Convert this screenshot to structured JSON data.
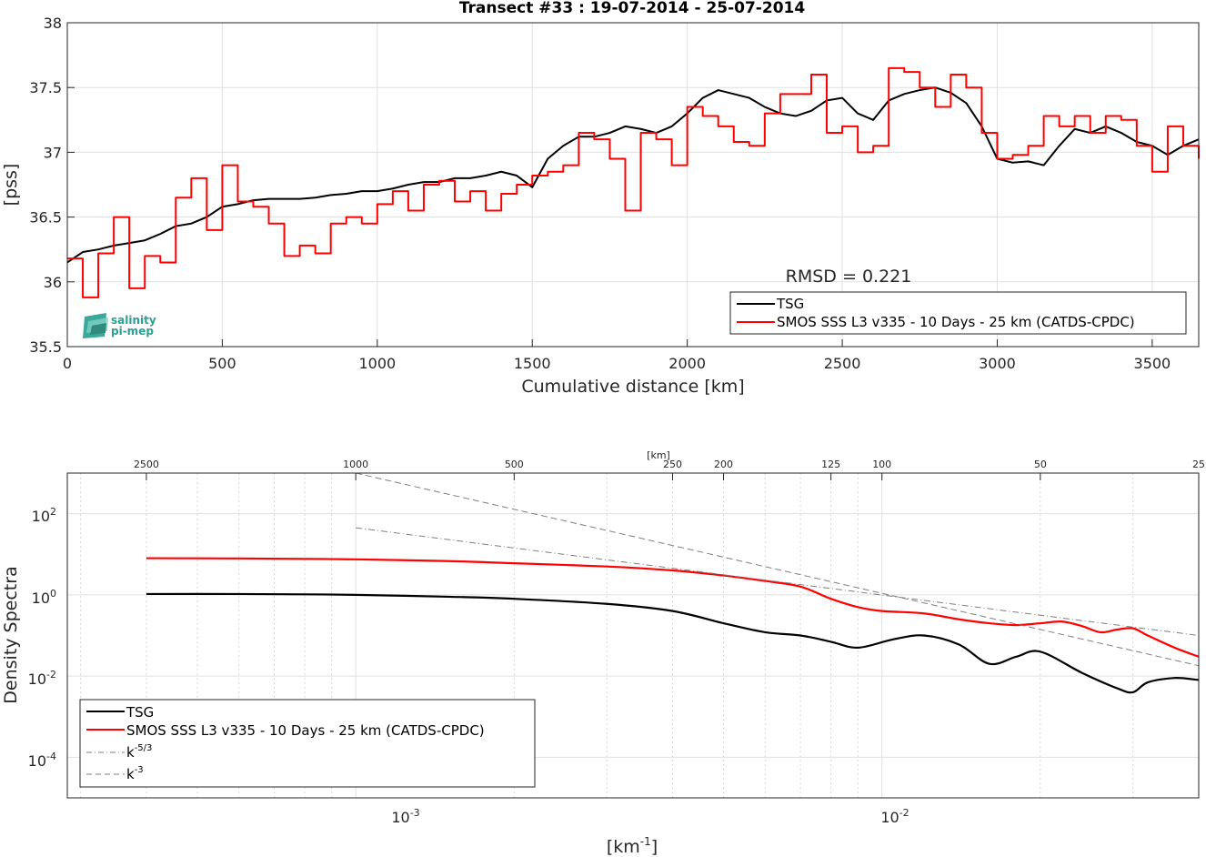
{
  "chart_data": [
    {
      "type": "line",
      "title": "Transect #33 : 19-07-2014 - 25-07-2014",
      "xlabel": "Cumulative distance [km]",
      "ylabel": "[pss]",
      "xlim": [
        0,
        3650
      ],
      "ylim": [
        35.5,
        38
      ],
      "xticks": [
        0,
        500,
        1000,
        1500,
        2000,
        2500,
        3000,
        3500
      ],
      "yticks": [
        35.5,
        36,
        36.5,
        37,
        37.5,
        38
      ],
      "grid": true,
      "legend_position": "bottom-right",
      "annotation": "RMSD = 0.221",
      "logo": "salinity pi-mep",
      "series": [
        {
          "name": "TSG",
          "color": "#000000",
          "x": [
            0,
            50,
            100,
            150,
            200,
            250,
            300,
            350,
            400,
            450,
            500,
            550,
            600,
            650,
            700,
            750,
            800,
            850,
            900,
            950,
            1000,
            1050,
            1100,
            1150,
            1200,
            1250,
            1300,
            1350,
            1400,
            1450,
            1500,
            1550,
            1600,
            1650,
            1700,
            1750,
            1800,
            1850,
            1900,
            1950,
            2000,
            2050,
            2100,
            2150,
            2200,
            2250,
            2300,
            2350,
            2400,
            2450,
            2500,
            2550,
            2600,
            2650,
            2700,
            2750,
            2800,
            2850,
            2900,
            2950,
            3000,
            3050,
            3100,
            3150,
            3200,
            3250,
            3300,
            3350,
            3400,
            3450,
            3500,
            3550,
            3600,
            3650
          ],
          "y": [
            36.15,
            36.23,
            36.25,
            36.28,
            36.3,
            36.32,
            36.37,
            36.43,
            36.45,
            36.5,
            36.58,
            36.6,
            36.63,
            36.64,
            36.64,
            36.64,
            36.65,
            36.67,
            36.68,
            36.7,
            36.7,
            36.72,
            36.75,
            36.77,
            36.77,
            36.8,
            36.8,
            36.82,
            36.85,
            36.82,
            36.73,
            36.95,
            37.05,
            37.12,
            37.12,
            37.15,
            37.2,
            37.18,
            37.15,
            37.2,
            37.3,
            37.42,
            37.48,
            37.45,
            37.42,
            37.35,
            37.3,
            37.28,
            37.32,
            37.4,
            37.42,
            37.3,
            37.25,
            37.4,
            37.45,
            37.48,
            37.5,
            37.46,
            37.38,
            37.2,
            36.95,
            36.92,
            36.93,
            36.9,
            37.05,
            37.18,
            37.15,
            37.2,
            37.15,
            37.08,
            37.05,
            36.98,
            37.05,
            37.1
          ]
        },
        {
          "name": "SMOS SSS L3 v335 - 10 Days - 25 km (CATDS-CPDC)",
          "color": "#ff0000",
          "x": [
            0,
            50,
            100,
            150,
            200,
            250,
            300,
            350,
            400,
            450,
            500,
            550,
            600,
            650,
            700,
            750,
            800,
            850,
            900,
            950,
            1000,
            1050,
            1100,
            1150,
            1200,
            1250,
            1300,
            1350,
            1400,
            1450,
            1500,
            1550,
            1600,
            1650,
            1700,
            1750,
            1800,
            1850,
            1900,
            1950,
            2000,
            2050,
            2100,
            2150,
            2200,
            2250,
            2300,
            2350,
            2400,
            2450,
            2500,
            2550,
            2600,
            2650,
            2700,
            2750,
            2800,
            2850,
            2900,
            2950,
            3000,
            3050,
            3100,
            3150,
            3200,
            3250,
            3300,
            3350,
            3400,
            3450,
            3500,
            3550,
            3600,
            3650
          ],
          "y": [
            36.18,
            35.88,
            36.22,
            36.5,
            35.95,
            36.2,
            36.15,
            36.65,
            36.8,
            36.4,
            36.9,
            36.62,
            36.58,
            36.45,
            36.2,
            36.28,
            36.22,
            36.45,
            36.5,
            36.45,
            36.6,
            36.7,
            36.55,
            36.75,
            36.78,
            36.62,
            36.7,
            36.55,
            36.68,
            36.75,
            36.82,
            36.85,
            36.9,
            37.15,
            37.1,
            36.95,
            36.55,
            37.15,
            37.1,
            36.9,
            37.35,
            37.28,
            37.2,
            37.08,
            37.05,
            37.3,
            37.45,
            37.45,
            37.6,
            37.15,
            37.2,
            37.0,
            37.05,
            37.65,
            37.62,
            37.5,
            37.35,
            37.6,
            37.5,
            37.15,
            36.95,
            36.98,
            37.05,
            37.28,
            37.2,
            37.28,
            37.15,
            37.28,
            37.25,
            37.05,
            36.85,
            37.2,
            37.05,
            36.95
          ]
        }
      ]
    },
    {
      "type": "line",
      "xlabel": "[km⁻¹]",
      "ylabel": "Density Spectra",
      "x_scale": "log",
      "y_scale": "log",
      "xlim": [
        0.000283,
        0.04
      ],
      "ylim": [
        1e-05,
        1000
      ],
      "xticks_labels": [
        "10-3",
        "10-2"
      ],
      "yticks_labels": [
        "10-4",
        "10-2",
        "100",
        "102"
      ],
      "top_axis_label": "[km]",
      "top_axis_ticks": [
        2500,
        1000,
        500,
        250,
        200,
        125,
        100,
        50,
        25
      ],
      "grid": true,
      "legend_position": "bottom-left",
      "series": [
        {
          "name": "TSG",
          "color": "#000000",
          "x": [
            0.0004,
            0.0006,
            0.0008,
            0.001,
            0.0015,
            0.002,
            0.003,
            0.004,
            0.005,
            0.006,
            0.007,
            0.008,
            0.009,
            0.0105,
            0.012,
            0.014,
            0.016,
            0.018,
            0.02,
            0.024,
            0.028,
            0.03,
            0.032,
            0.036,
            0.04
          ],
          "y": [
            1.05,
            1.05,
            1.03,
            1.0,
            0.9,
            0.8,
            0.6,
            0.4,
            0.2,
            0.12,
            0.1,
            0.07,
            0.05,
            0.08,
            0.1,
            0.06,
            0.02,
            0.03,
            0.04,
            0.012,
            0.005,
            0.004,
            0.007,
            0.009,
            0.008
          ]
        },
        {
          "name": "SMOS SSS L3 v335 - 10 Days - 25 km (CATDS-CPDC)",
          "color": "#ff0000",
          "x": [
            0.0004,
            0.0006,
            0.0008,
            0.001,
            0.0015,
            0.002,
            0.003,
            0.004,
            0.005,
            0.006,
            0.007,
            0.008,
            0.009,
            0.01,
            0.012,
            0.014,
            0.016,
            0.018,
            0.02,
            0.022,
            0.024,
            0.026,
            0.028,
            0.03,
            0.032,
            0.036,
            0.04
          ],
          "y": [
            8.0,
            7.9,
            7.7,
            7.5,
            6.8,
            6.0,
            5.0,
            4.0,
            3.0,
            2.2,
            1.6,
            0.8,
            0.5,
            0.4,
            0.35,
            0.25,
            0.2,
            0.18,
            0.2,
            0.22,
            0.17,
            0.12,
            0.14,
            0.15,
            0.1,
            0.05,
            0.03
          ]
        },
        {
          "name": "k-5/3",
          "color": "#7f7f7f",
          "dash": "dashdot",
          "x": [
            0.001,
            0.04
          ],
          "y": [
            45,
            0.1
          ]
        },
        {
          "name": "k-3",
          "color": "#7f7f7f",
          "dash": "dashed",
          "x": [
            0.001,
            0.04
          ],
          "y": [
            1000,
            0.018
          ]
        }
      ]
    }
  ]
}
